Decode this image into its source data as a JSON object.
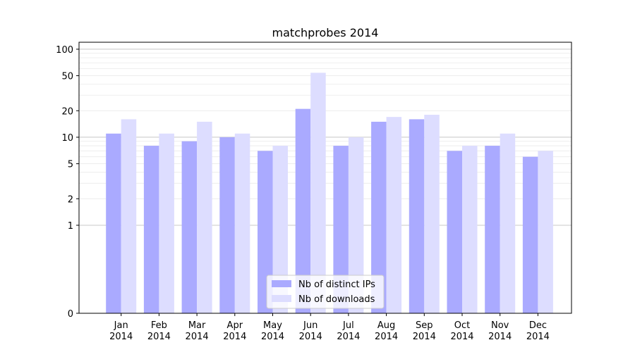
{
  "chart_data": {
    "type": "bar",
    "title": "matchprobes 2014",
    "xlabel": "",
    "ylabel": "",
    "y_scale": "symlog",
    "ylim": [
      0,
      120
    ],
    "grid": true,
    "legend_position": "lower center",
    "categories": [
      [
        "Jan",
        "2014"
      ],
      [
        "Feb",
        "2014"
      ],
      [
        "Mar",
        "2014"
      ],
      [
        "Apr",
        "2014"
      ],
      [
        "May",
        "2014"
      ],
      [
        "Jun",
        "2014"
      ],
      [
        "Jul",
        "2014"
      ],
      [
        "Aug",
        "2014"
      ],
      [
        "Sep",
        "2014"
      ],
      [
        "Oct",
        "2014"
      ],
      [
        "Nov",
        "2014"
      ],
      [
        "Dec",
        "2014"
      ]
    ],
    "y_ticks": [
      "0",
      "1",
      "2",
      "5",
      "10",
      "20",
      "50",
      "100"
    ],
    "series": [
      {
        "name": "Nb of distinct IPs",
        "color": "#aaaaff",
        "values": [
          11,
          8,
          9,
          10,
          7,
          21,
          8,
          15,
          16,
          7,
          8,
          6
        ]
      },
      {
        "name": "Nb of downloads",
        "color": "#ddddff",
        "values": [
          16,
          11,
          15,
          11,
          8,
          54,
          10,
          17,
          18,
          8,
          11,
          7
        ]
      }
    ]
  }
}
